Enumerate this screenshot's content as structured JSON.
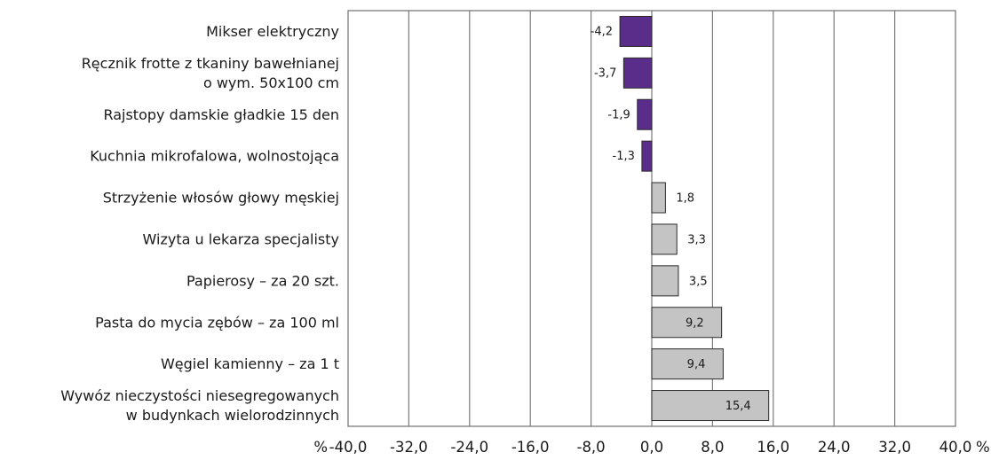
{
  "chart_data": {
    "type": "bar",
    "orientation": "horizontal",
    "categories": [
      [
        "Mikser elektryczny"
      ],
      [
        "Ręcznik frotte z tkaniny bawełnianej",
        "o wym. 50x100 cm"
      ],
      [
        "Rajstopy damskie gładkie 15 den"
      ],
      [
        "Kuchnia mikrofalowa, wolnostojąca"
      ],
      [
        "Strzyżenie włosów głowy męskiej"
      ],
      [
        "Wizyta u lekarza specjalisty"
      ],
      [
        "Papierosy – za 20 szt."
      ],
      [
        "Pasta do mycia zębów – za 100 ml"
      ],
      [
        "Węgiel kamienny – za 1 t"
      ],
      [
        "Wywóz nieczystości niesegregowanych",
        "w budynkach wielorodzinnych"
      ]
    ],
    "values": [
      -4.2,
      -3.7,
      -1.9,
      -1.3,
      1.8,
      3.3,
      3.5,
      9.2,
      9.4,
      15.4
    ],
    "data_labels": [
      "-4,2",
      "-3,7",
      "-1,9",
      "-1,3",
      "1,8",
      "3,3",
      "3,5",
      "9,2",
      "9,4",
      "15,4"
    ],
    "xlim": [
      -40,
      40
    ],
    "x_ticks": [
      -40,
      -32,
      -24,
      -16,
      -8,
      0,
      8,
      16,
      24,
      32,
      40
    ],
    "x_tick_labels": [
      "-40,0",
      "-32,0",
      "-24,0",
      "-16,0",
      "-8,0",
      "0,0",
      "8,0",
      "16,0",
      "24,0",
      "32,0",
      "40,0"
    ],
    "axis_unit_left": "%",
    "axis_unit_right": "%",
    "grid": true,
    "legend": "none",
    "colors": {
      "negative": "#5b2d8a",
      "positive": "#c4c4c4",
      "bar_edge": "#2a2a2a",
      "grid": "#7a7a7a",
      "frame": "#7a7a7a"
    }
  }
}
